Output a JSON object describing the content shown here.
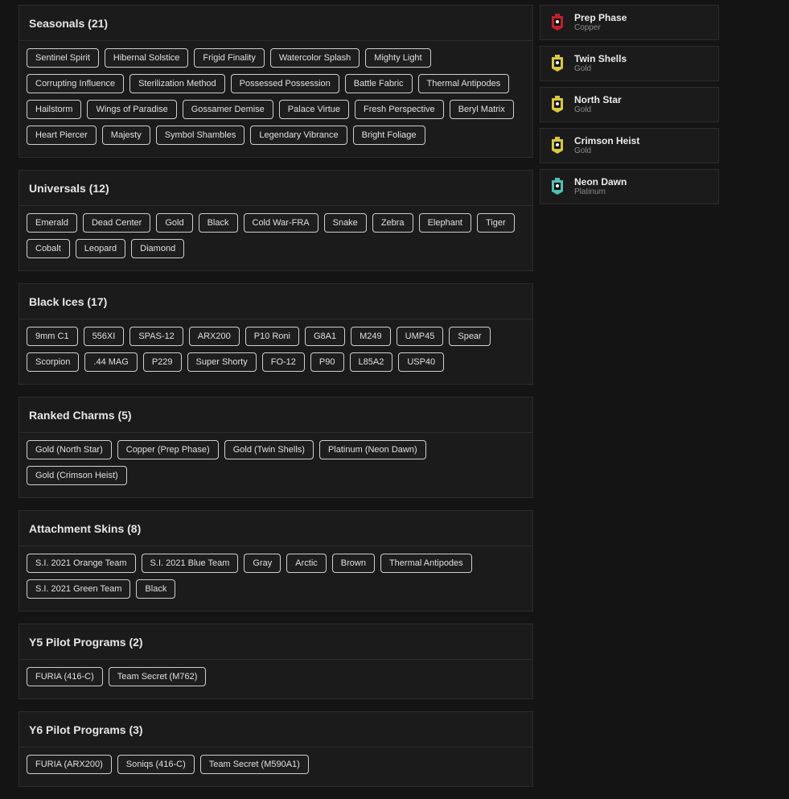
{
  "sections": [
    {
      "title": "Seasonals (21)",
      "tags": [
        "Sentinel Spirit",
        "Hibernal Solstice",
        "Frigid Finality",
        "Watercolor Splash",
        "Mighty Light",
        "Corrupting Influence",
        "Sterilization Method",
        "Possessed Possession",
        "Battle Fabric",
        "Thermal Antipodes",
        "Hailstorm",
        "Wings of Paradise",
        "Gossamer Demise",
        "Palace Virtue",
        "Fresh Perspective",
        "Beryl Matrix",
        "Heart Piercer",
        "Majesty",
        "Symbol Shambles",
        "Legendary Vibrance",
        "Bright Foliage"
      ]
    },
    {
      "title": "Universals (12)",
      "tags": [
        "Emerald",
        "Dead Center",
        "Gold",
        "Black",
        "Cold War-FRA",
        "Snake",
        "Zebra",
        "Elephant",
        "Tiger",
        "Cobalt",
        "Leopard",
        "Diamond"
      ]
    },
    {
      "title": "Black Ices (17)",
      "tags": [
        "9mm C1",
        "556XI",
        "SPAS-12",
        "ARX200",
        "P10 Roni",
        "G8A1",
        "M249",
        "UMP45",
        "Spear",
        "Scorpion",
        ".44 MAG",
        "P229",
        "Super Shorty",
        "FO-12",
        "P90",
        "L85A2",
        "USP40"
      ]
    },
    {
      "title": "Ranked Charms (5)",
      "tags": [
        "Gold (North Star)",
        "Copper (Prep Phase)",
        "Gold (Twin Shells)",
        "Platinum (Neon Dawn)",
        "Gold (Crimson Heist)"
      ]
    },
    {
      "title": "Attachment Skins (8)",
      "tags": [
        "S.I. 2021 Orange Team",
        "S.I. 2021 Blue Team",
        "Gray",
        "Arctic",
        "Brown",
        "Thermal Antipodes",
        "S.I. 2021 Green Team",
        "Black"
      ]
    },
    {
      "title": "Y5 Pilot Programs (2)",
      "tags": [
        "FURIA (416-C)",
        "Team Secret (M762)"
      ]
    },
    {
      "title": "Y6 Pilot Programs (3)",
      "tags": [
        "FURIA (ARX200)",
        "Soniqs (416-C)",
        "Team Secret (M590A1)"
      ]
    }
  ],
  "charms": [
    {
      "name": "Prep Phase",
      "rank": "Copper",
      "color": "#c0202a",
      "icon": "charm-badge-icon"
    },
    {
      "name": "Twin Shells",
      "rank": "Gold",
      "color": "#d8c93a",
      "icon": "charm-badge-icon"
    },
    {
      "name": "North Star",
      "rank": "Gold",
      "color": "#d8c93a",
      "icon": "charm-badge-icon"
    },
    {
      "name": "Crimson Heist",
      "rank": "Gold",
      "color": "#d8c93a",
      "icon": "charm-badge-icon"
    },
    {
      "name": "Neon Dawn",
      "rank": "Platinum",
      "color": "#4fc2b4",
      "icon": "charm-badge-icon"
    }
  ]
}
